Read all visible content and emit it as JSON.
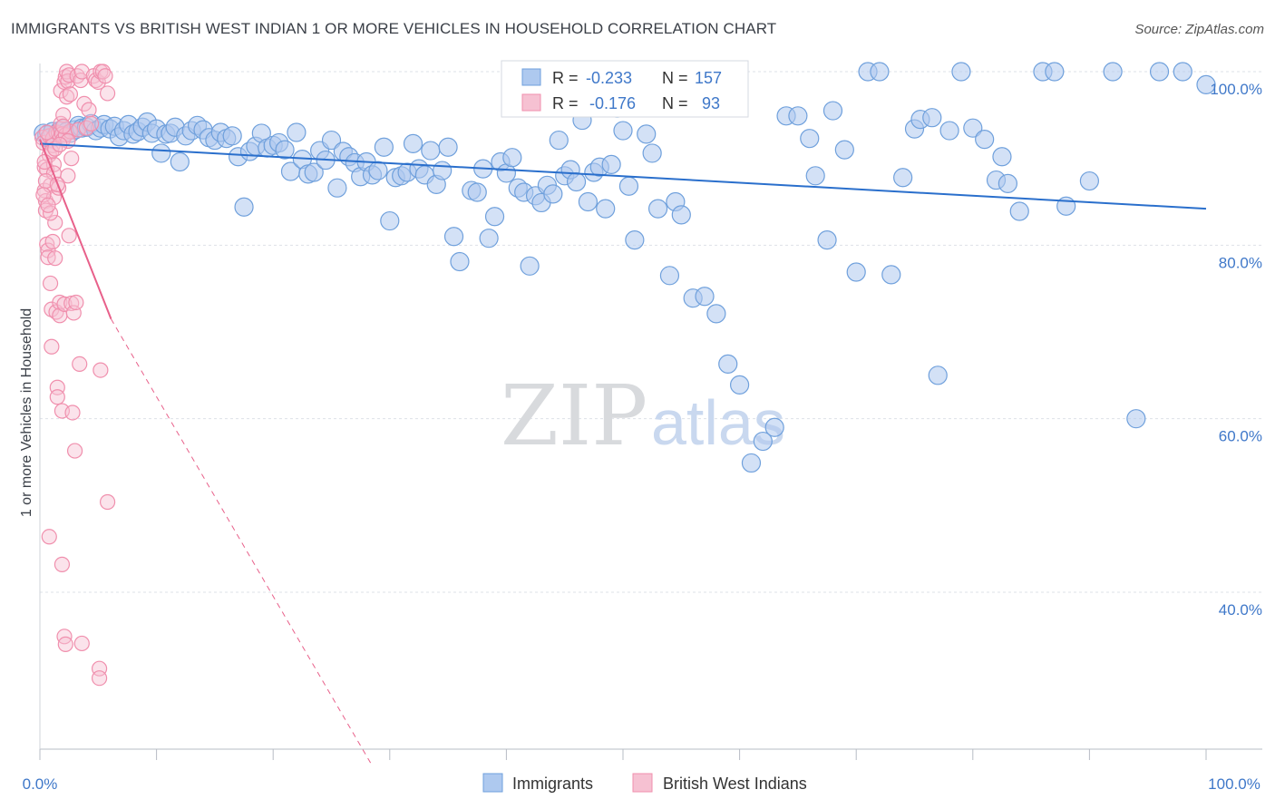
{
  "header": {
    "title": "IMMIGRANTS VS BRITISH WEST INDIAN 1 OR MORE VEHICLES IN HOUSEHOLD CORRELATION CHART",
    "source": "Source: ZipAtlas.com"
  },
  "watermark": {
    "zip": "ZIP",
    "atlas": "atlas"
  },
  "legend_box": {
    "rows": [
      {
        "r_label": "R =",
        "r_value": "-0.233",
        "n_label": "N =",
        "n_value": "157"
      },
      {
        "r_label": "R =",
        "r_value": "-0.176",
        "n_label": "N =",
        "n_value": "93"
      }
    ]
  },
  "colors": {
    "immigrants": "#6fa0dc",
    "immigrants_fill": "#aec9ef",
    "immigrants_line": "#2a6fcc",
    "bwi": "#f08fad",
    "bwi_fill": "#f6c1d2",
    "bwi_line": "#e8608a",
    "axis_value": "#3f78c9",
    "grid": "#dde1e7"
  },
  "chart_data": {
    "type": "scatter",
    "title": "IMMIGRANTS VS BRITISH WEST INDIAN 1 OR MORE VEHICLES IN HOUSEHOLD CORRELATION CHART",
    "xlabel": "",
    "ylabel": "1 or more Vehicles in Household",
    "xlim": [
      0,
      100
    ],
    "ylim": [
      20,
      101
    ],
    "x_tick_labels": [
      "0.0%",
      "100.0%"
    ],
    "y_tick_labels": [
      "100.0%",
      "80.0%",
      "60.0%",
      "40.0%"
    ],
    "y_ticks": [
      100,
      80,
      60,
      40
    ],
    "grid": true,
    "legend_position": "bottom-center",
    "series": [
      {
        "name": "Immigrants",
        "r": -0.233,
        "n": 157,
        "trend": {
          "x": [
            0,
            100
          ],
          "y": [
            91.7,
            84.2
          ],
          "dashed_from": null
        },
        "points": [
          [
            0.3,
            92.9
          ],
          [
            0.6,
            92.7
          ],
          [
            0.8,
            92.3
          ],
          [
            1.1,
            93.1
          ],
          [
            1.4,
            92.6
          ],
          [
            1.7,
            93.2
          ],
          [
            2.0,
            93.4
          ],
          [
            2.3,
            93.1
          ],
          [
            2.6,
            92.9
          ],
          [
            3.0,
            93.3
          ],
          [
            3.3,
            93.8
          ],
          [
            3.6,
            93.5
          ],
          [
            4.0,
            93.6
          ],
          [
            4.4,
            94.0
          ],
          [
            4.8,
            93.2
          ],
          [
            5.2,
            93.5
          ],
          [
            5.5,
            93.9
          ],
          [
            6.0,
            93.4
          ],
          [
            6.4,
            93.7
          ],
          [
            6.8,
            92.5
          ],
          [
            7.2,
            93.2
          ],
          [
            7.6,
            93.9
          ],
          [
            8.0,
            92.8
          ],
          [
            8.4,
            93.1
          ],
          [
            8.8,
            93.6
          ],
          [
            9.2,
            94.2
          ],
          [
            9.6,
            92.9
          ],
          [
            10.0,
            93.4
          ],
          [
            10.4,
            90.6
          ],
          [
            10.8,
            92.8
          ],
          [
            11.2,
            92.9
          ],
          [
            11.6,
            93.6
          ],
          [
            12.0,
            89.6
          ],
          [
            12.5,
            92.6
          ],
          [
            13.0,
            93.2
          ],
          [
            13.5,
            93.8
          ],
          [
            14.0,
            93.3
          ],
          [
            14.5,
            92.4
          ],
          [
            15.0,
            92.1
          ],
          [
            15.5,
            93.0
          ],
          [
            16.0,
            92.3
          ],
          [
            16.5,
            92.6
          ],
          [
            17.0,
            90.2
          ],
          [
            17.5,
            84.4
          ],
          [
            18.0,
            90.8
          ],
          [
            18.5,
            91.4
          ],
          [
            19.0,
            92.9
          ],
          [
            19.5,
            91.2
          ],
          [
            20.0,
            91.5
          ],
          [
            20.5,
            91.8
          ],
          [
            21.0,
            91.0
          ],
          [
            21.5,
            88.5
          ],
          [
            22.0,
            93.0
          ],
          [
            22.5,
            89.9
          ],
          [
            23.0,
            88.2
          ],
          [
            23.5,
            88.4
          ],
          [
            24.0,
            90.9
          ],
          [
            24.5,
            89.8
          ],
          [
            25.0,
            92.1
          ],
          [
            25.5,
            86.6
          ],
          [
            26.0,
            90.8
          ],
          [
            26.5,
            90.2
          ],
          [
            27.0,
            89.5
          ],
          [
            27.5,
            87.9
          ],
          [
            28.0,
            89.6
          ],
          [
            28.5,
            88.1
          ],
          [
            29.0,
            88.6
          ],
          [
            29.5,
            91.3
          ],
          [
            30.0,
            82.8
          ],
          [
            30.5,
            87.8
          ],
          [
            31.0,
            88.0
          ],
          [
            31.5,
            88.4
          ],
          [
            32.0,
            91.7
          ],
          [
            32.5,
            88.8
          ],
          [
            33.0,
            88.1
          ],
          [
            33.5,
            90.9
          ],
          [
            34.0,
            87.0
          ],
          [
            34.5,
            88.6
          ],
          [
            35.0,
            91.3
          ],
          [
            35.5,
            81.0
          ],
          [
            36.0,
            78.1
          ],
          [
            37.0,
            86.3
          ],
          [
            37.5,
            86.1
          ],
          [
            38.0,
            88.8
          ],
          [
            38.5,
            80.8
          ],
          [
            39.0,
            83.3
          ],
          [
            39.5,
            89.6
          ],
          [
            40.0,
            88.3
          ],
          [
            40.5,
            90.1
          ],
          [
            41.0,
            86.6
          ],
          [
            41.5,
            86.1
          ],
          [
            42.0,
            77.6
          ],
          [
            42.5,
            85.7
          ],
          [
            43.0,
            84.9
          ],
          [
            43.5,
            86.9
          ],
          [
            44.0,
            85.9
          ],
          [
            44.5,
            92.1
          ],
          [
            45.0,
            88.0
          ],
          [
            45.5,
            88.7
          ],
          [
            46.0,
            87.3
          ],
          [
            46.5,
            94.4
          ],
          [
            47.0,
            85.0
          ],
          [
            47.5,
            88.4
          ],
          [
            48.0,
            89.0
          ],
          [
            48.5,
            84.2
          ],
          [
            49.0,
            89.3
          ],
          [
            49.5,
            95.8
          ],
          [
            50.0,
            93.2
          ],
          [
            50.5,
            86.8
          ],
          [
            51.0,
            80.6
          ],
          [
            52.0,
            92.8
          ],
          [
            52.5,
            90.6
          ],
          [
            53.0,
            84.2
          ],
          [
            54.0,
            76.5
          ],
          [
            54.5,
            85.0
          ],
          [
            55.0,
            83.5
          ],
          [
            56.0,
            73.9
          ],
          [
            57.0,
            74.1
          ],
          [
            58.0,
            72.1
          ],
          [
            59.0,
            66.3
          ],
          [
            60.0,
            63.9
          ],
          [
            61.0,
            54.9
          ],
          [
            62.0,
            57.4
          ],
          [
            63.0,
            59.0
          ],
          [
            64.0,
            94.9
          ],
          [
            65.0,
            94.9
          ],
          [
            66.0,
            92.3
          ],
          [
            66.5,
            88.0
          ],
          [
            67.5,
            80.6
          ],
          [
            68.0,
            95.5
          ],
          [
            69.0,
            91.0
          ],
          [
            70.0,
            76.9
          ],
          [
            71.0,
            100.0
          ],
          [
            72.0,
            100.0
          ],
          [
            73.0,
            76.6
          ],
          [
            74.0,
            87.8
          ],
          [
            75.0,
            93.4
          ],
          [
            75.5,
            94.5
          ],
          [
            76.5,
            94.7
          ],
          [
            77.0,
            65.0
          ],
          [
            78.0,
            93.2
          ],
          [
            79.0,
            100.0
          ],
          [
            80.0,
            93.5
          ],
          [
            81.0,
            92.2
          ],
          [
            82.0,
            87.5
          ],
          [
            82.5,
            90.2
          ],
          [
            83.0,
            87.1
          ],
          [
            84.0,
            83.9
          ],
          [
            86.0,
            100.0
          ],
          [
            87.0,
            100.0
          ],
          [
            88.0,
            84.5
          ],
          [
            90.0,
            87.4
          ],
          [
            92.0,
            100.0
          ],
          [
            94.0,
            60.0
          ],
          [
            96.0,
            100.0
          ],
          [
            98.0,
            100.0
          ],
          [
            100.0,
            98.5
          ]
        ]
      },
      {
        "name": "British West Indians",
        "r": -0.176,
        "n": 93,
        "trend": {
          "x": [
            0,
            6.1,
            28.5
          ],
          "y": [
            92.2,
            71.5,
            20
          ],
          "dashed_from": 6.1
        },
        "points": [
          [
            0.2,
            92.4
          ],
          [
            0.3,
            91.8
          ],
          [
            0.4,
            89.0
          ],
          [
            0.4,
            86.3
          ],
          [
            0.5,
            85.1
          ],
          [
            0.5,
            84.0
          ],
          [
            0.6,
            88.7
          ],
          [
            0.6,
            80.1
          ],
          [
            0.7,
            79.4
          ],
          [
            0.7,
            78.6
          ],
          [
            0.8,
            92.6
          ],
          [
            0.8,
            90.4
          ],
          [
            0.9,
            86.9
          ],
          [
            0.9,
            75.6
          ],
          [
            1.0,
            72.6
          ],
          [
            1.0,
            68.3
          ],
          [
            1.1,
            92.3
          ],
          [
            1.1,
            91.5
          ],
          [
            1.2,
            89.3
          ],
          [
            1.2,
            85.5
          ],
          [
            1.3,
            82.6
          ],
          [
            1.3,
            78.5
          ],
          [
            1.4,
            93.0
          ],
          [
            1.4,
            72.3
          ],
          [
            1.5,
            63.6
          ],
          [
            1.5,
            62.5
          ],
          [
            1.6,
            92.9
          ],
          [
            1.6,
            86.6
          ],
          [
            1.7,
            73.4
          ],
          [
            1.7,
            71.9
          ],
          [
            1.8,
            97.8
          ],
          [
            1.8,
            94.0
          ],
          [
            1.9,
            92.8
          ],
          [
            1.9,
            60.9
          ],
          [
            2.0,
            95.0
          ],
          [
            2.0,
            92.2
          ],
          [
            2.1,
            98.8
          ],
          [
            2.1,
            73.2
          ],
          [
            2.2,
            99.4
          ],
          [
            2.2,
            92.7
          ],
          [
            2.3,
            100.0
          ],
          [
            2.3,
            97.1
          ],
          [
            2.4,
            98.9
          ],
          [
            2.4,
            88.0
          ],
          [
            2.5,
            99.6
          ],
          [
            2.5,
            81.1
          ],
          [
            2.6,
            97.4
          ],
          [
            2.6,
            93.1
          ],
          [
            2.7,
            90.0
          ],
          [
            2.7,
            73.3
          ],
          [
            2.8,
            60.7
          ],
          [
            2.9,
            72.2
          ],
          [
            3.0,
            56.3
          ],
          [
            3.1,
            73.4
          ],
          [
            3.2,
            99.5
          ],
          [
            3.3,
            93.3
          ],
          [
            3.4,
            66.3
          ],
          [
            3.5,
            99.0
          ],
          [
            3.6,
            100.0
          ],
          [
            3.8,
            96.3
          ],
          [
            4.0,
            93.5
          ],
          [
            4.2,
            95.6
          ],
          [
            4.4,
            94.0
          ],
          [
            4.6,
            99.5
          ],
          [
            4.8,
            99.0
          ],
          [
            5.0,
            98.8
          ],
          [
            5.2,
            100.0
          ],
          [
            5.4,
            100.0
          ],
          [
            5.6,
            99.5
          ],
          [
            5.8,
            97.5
          ],
          [
            5.2,
            65.6
          ],
          [
            5.8,
            50.4
          ],
          [
            0.8,
            46.4
          ],
          [
            1.9,
            43.2
          ],
          [
            2.1,
            34.9
          ],
          [
            2.2,
            34.0
          ],
          [
            3.6,
            34.1
          ],
          [
            5.1,
            31.2
          ],
          [
            5.1,
            30.1
          ],
          [
            1.0,
            90.8
          ],
          [
            1.2,
            88.3
          ],
          [
            0.5,
            87.4
          ],
          [
            0.3,
            85.8
          ],
          [
            0.9,
            83.7
          ],
          [
            1.5,
            87.0
          ],
          [
            2.0,
            93.7
          ],
          [
            2.4,
            92.0
          ],
          [
            0.6,
            93.0
          ],
          [
            1.3,
            91.1
          ],
          [
            1.7,
            91.6
          ],
          [
            0.4,
            89.6
          ],
          [
            0.7,
            84.6
          ],
          [
            1.1,
            80.4
          ]
        ]
      }
    ]
  },
  "bottom_legend": {
    "items": [
      {
        "label": "Immigrants"
      },
      {
        "label": "British West Indians"
      }
    ]
  }
}
